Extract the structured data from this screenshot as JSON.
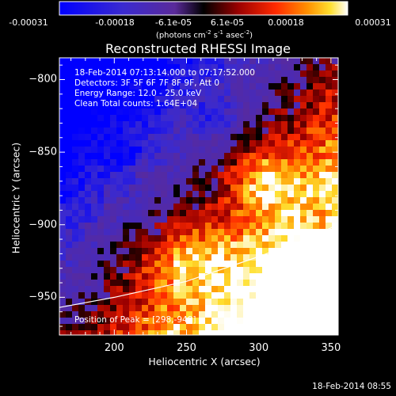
{
  "colorbar": {
    "ticks": [
      "-0.00031",
      "-0.00018",
      "-6.1e-05",
      "6.1e-05",
      "0.00018",
      "0.00031"
    ],
    "unit_main": "(photons cm",
    "unit_exp1": "-2",
    "unit_mid": " s",
    "unit_exp2": "-1",
    "unit_end": " asec",
    "unit_exp3": "-2",
    "unit_close": ")",
    "range": [
      -0.00031,
      0.00031
    ]
  },
  "annotations": {
    "time": "18-Feb-2014 07:13:14.000 to 07:17:52.000",
    "detectors": "Detectors: 3F 5F 6F 7F 8F 9F, Att 0",
    "energy": "Energy Range: 12.0 - 25.0 keV",
    "clean": "Clean     Total counts: 1.64E+04",
    "peak": "Position of Peak = [298,-948]"
  },
  "footer": {
    "timestamp": "18-Feb-2014 08:55"
  },
  "colors": {
    "background": "#000000",
    "limb": "#ffffff",
    "text": "#ffffff"
  },
  "chart_data": {
    "type": "heatmap",
    "title": "Reconstructed RHESSI Image",
    "xlabel": "Heliocentric X (arcsec)",
    "ylabel": "Heliocentric Y (arcsec)",
    "xlim": [
      162,
      355
    ],
    "ylim": [
      -976,
      -785
    ],
    "x_ticks": [
      200,
      250,
      300,
      350
    ],
    "y_ticks": [
      -800,
      -850,
      -900,
      -950
    ],
    "x_tick_labels": [
      "200",
      "250",
      "300",
      "350"
    ],
    "y_tick_labels": [
      "−800",
      "−850",
      "−900",
      "−950"
    ],
    "grid": false,
    "colormap": "blue-purple-red-yellow-white",
    "limb_curve": [
      [
        162,
        -957
      ],
      [
        200,
        -950
      ],
      [
        250,
        -939
      ],
      [
        300,
        -922
      ],
      [
        330,
        -911
      ],
      [
        355,
        -900
      ]
    ],
    "peak": [
      298,
      -948
    ]
  }
}
